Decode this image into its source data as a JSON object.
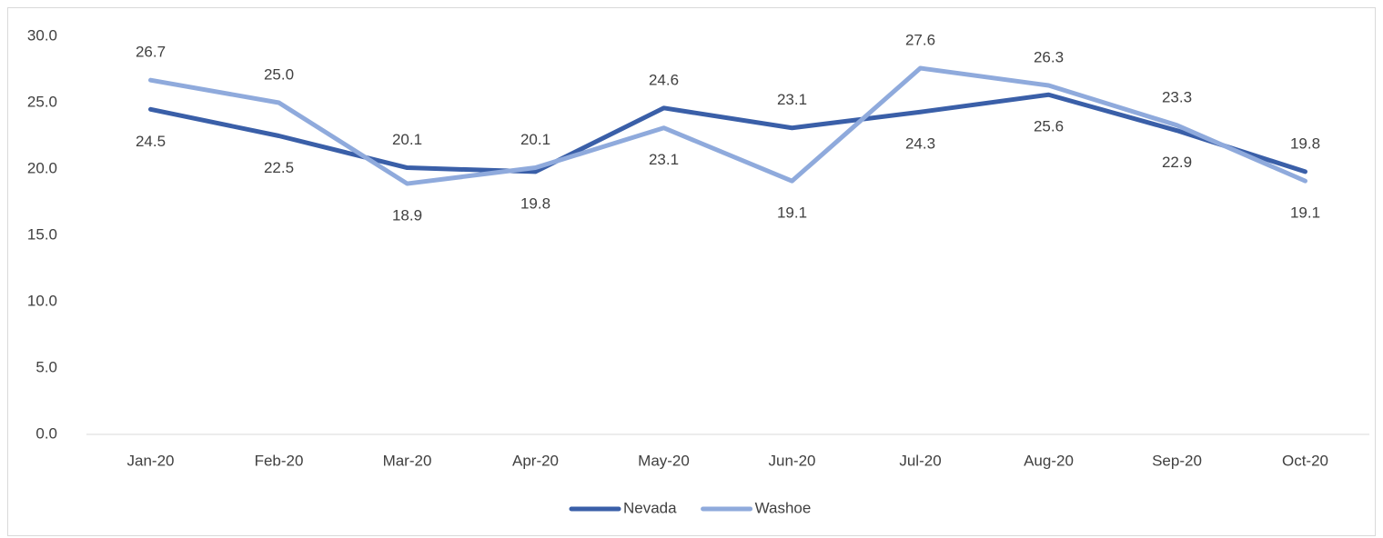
{
  "chart_data": {
    "type": "line",
    "categories": [
      "Jan-20",
      "Feb-20",
      "Mar-20",
      "Apr-20",
      "May-20",
      "Jun-20",
      "Jul-20",
      "Aug-20",
      "Sep-20",
      "Oct-20"
    ],
    "series": [
      {
        "name": "Nevada",
        "color": "#3a5fa8",
        "values": [
          24.5,
          22.5,
          20.1,
          19.8,
          24.6,
          23.1,
          24.3,
          25.6,
          22.9,
          19.8
        ],
        "value_labels": [
          "24.5",
          "22.5",
          "20.1",
          "19.8",
          "24.6",
          "23.1",
          "24.3",
          "25.6",
          "22.9",
          "19.8"
        ]
      },
      {
        "name": "Washoe",
        "color": "#8faadc",
        "values": [
          26.7,
          25.0,
          18.9,
          20.1,
          23.1,
          19.1,
          27.6,
          26.3,
          23.3,
          19.1
        ],
        "value_labels": [
          "26.7",
          "25.0",
          "18.9",
          "20.1",
          "23.1",
          "19.1",
          "27.6",
          "26.3",
          "23.3",
          "19.1"
        ]
      }
    ],
    "ylim": [
      0,
      30
    ],
    "yticks": [
      {
        "value": 0,
        "label": "0.0"
      },
      {
        "value": 5,
        "label": "5.0"
      },
      {
        "value": 10,
        "label": "10.0"
      },
      {
        "value": 15,
        "label": "15.0"
      },
      {
        "value": 20,
        "label": "20.0"
      },
      {
        "value": 25,
        "label": "25.0"
      },
      {
        "value": 30,
        "label": "30.0"
      }
    ],
    "grid": false,
    "legend": "bottom"
  }
}
